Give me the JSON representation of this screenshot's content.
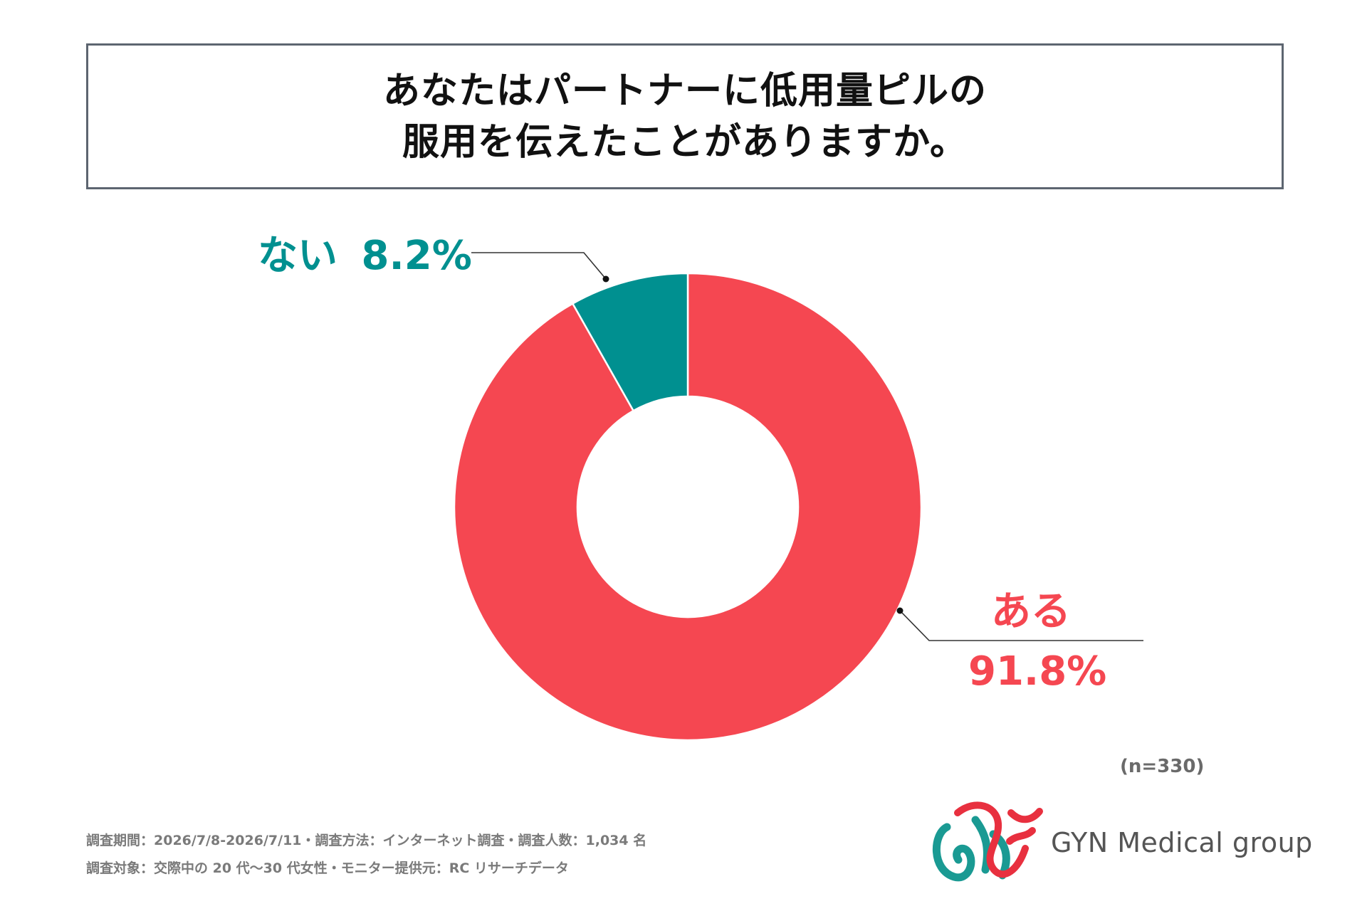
{
  "title": {
    "line1": "あなたはパートナーに低用量ピルの",
    "line2": "服用を伝えたことがありますか。"
  },
  "chart_data": {
    "type": "pie",
    "variant": "donut",
    "categories": [
      "ある",
      "ない"
    ],
    "values": [
      91.8,
      8.2
    ],
    "unit": "%",
    "colors": {
      "ある": "#f54751",
      "ない": "#009090"
    },
    "labels": {
      "nai": {
        "category": "ない",
        "percent": "8.2%"
      },
      "aru": {
        "category": "ある",
        "percent": "91.8%"
      }
    }
  },
  "sample_size": "(n=330)",
  "footnotes": {
    "line1": "調査期間：2026/7/8-2026/7/11・調査方法：インターネット調査・調査人数：1,034 名",
    "line2": "調査対象：交際中の 20 代〜30 代女性・モニター提供元：RC リサーチデータ"
  },
  "logo": {
    "name": "GYN Medical group",
    "mark_colors": [
      "#e8303f",
      "#1a9a93"
    ]
  }
}
